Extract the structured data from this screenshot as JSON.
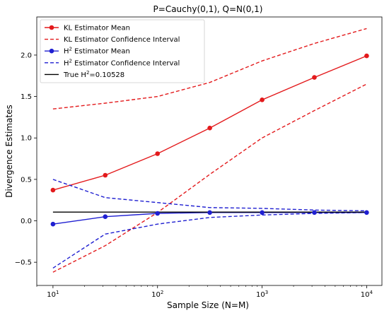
{
  "chart_data": {
    "type": "line",
    "title": "P=Cauchy(0,1), Q=N(0,1)",
    "xlabel": "Sample Size (N=M)",
    "ylabel": "Divergence Estimates",
    "xscale": "log",
    "xlim": [
      7,
      14000
    ],
    "ylim": [
      -0.78,
      2.46
    ],
    "x": [
      10,
      31.6,
      100,
      316,
      1000,
      3162,
      10000
    ],
    "x_ticks": [
      {
        "value": 10,
        "base": "10",
        "exp": "1"
      },
      {
        "value": 100,
        "base": "10",
        "exp": "2"
      },
      {
        "value": 1000,
        "base": "10",
        "exp": "3"
      },
      {
        "value": 10000,
        "base": "10",
        "exp": "4"
      }
    ],
    "y_ticks": [
      {
        "value": -0.5,
        "label": "−0.5"
      },
      {
        "value": 0.0,
        "label": "0.0"
      },
      {
        "value": 0.5,
        "label": "0.5"
      },
      {
        "value": 1.0,
        "label": "1.0"
      },
      {
        "value": 1.5,
        "label": "1.5"
      },
      {
        "value": 2.0,
        "label": "2.0"
      }
    ],
    "grid": false,
    "legend_position": "top-left",
    "series": [
      {
        "name": "KL Estimator Mean",
        "color": "#e31a1c",
        "style": "solid",
        "markers": true,
        "values": [
          0.37,
          0.55,
          0.81,
          1.12,
          1.46,
          1.73,
          1.99
        ]
      },
      {
        "name": "KL Estimator Confidence Interval",
        "color": "#e31a1c",
        "style": "dashed",
        "markers": false,
        "values": [
          1.35,
          1.42,
          1.5,
          1.67,
          1.93,
          2.14,
          2.32
        ]
      },
      {
        "name": "KL Estimator Confidence Interval",
        "color": "#e31a1c",
        "style": "dashed",
        "markers": false,
        "in_legend": false,
        "values": [
          -0.62,
          -0.3,
          0.1,
          0.56,
          1.0,
          1.33,
          1.65
        ]
      },
      {
        "name": "H² Estimator Mean",
        "color": "#1f1fd1",
        "style": "solid",
        "markers": true,
        "values": [
          -0.04,
          0.05,
          0.09,
          0.1,
          0.1,
          0.1,
          0.1
        ]
      },
      {
        "name": "H² Estimator Confidence Interval",
        "color": "#1f1fd1",
        "style": "dashed",
        "markers": false,
        "values": [
          0.5,
          0.28,
          0.22,
          0.16,
          0.15,
          0.13,
          0.12
        ]
      },
      {
        "name": "H² Estimator Confidence Interval",
        "color": "#1f1fd1",
        "style": "dashed",
        "markers": false,
        "in_legend": false,
        "values": [
          -0.57,
          -0.16,
          -0.04,
          0.04,
          0.07,
          0.09,
          0.1
        ]
      },
      {
        "name": "True H²=0.10528",
        "color": "#000000",
        "style": "solid",
        "markers": false,
        "values": [
          0.10528,
          0.10528,
          0.10528,
          0.10528,
          0.10528,
          0.10528,
          0.10528
        ]
      }
    ],
    "legend": [
      {
        "label_pre": "KL Estimator Mean",
        "sup": "",
        "label_post": "",
        "color": "#e31a1c",
        "style": "solid",
        "marker": true
      },
      {
        "label_pre": "KL Estimator Confidence Interval",
        "sup": "",
        "label_post": "",
        "color": "#e31a1c",
        "style": "dashed",
        "marker": false
      },
      {
        "label_pre": "H",
        "sup": "2",
        "label_post": " Estimator Mean",
        "color": "#1f1fd1",
        "style": "solid",
        "marker": true
      },
      {
        "label_pre": "H",
        "sup": "2",
        "label_post": " Estimator Confidence Interval",
        "color": "#1f1fd1",
        "style": "dashed",
        "marker": false
      },
      {
        "label_pre": "True H",
        "sup": "2",
        "label_post": "=0.10528",
        "color": "#000000",
        "style": "solid",
        "marker": false
      }
    ]
  }
}
